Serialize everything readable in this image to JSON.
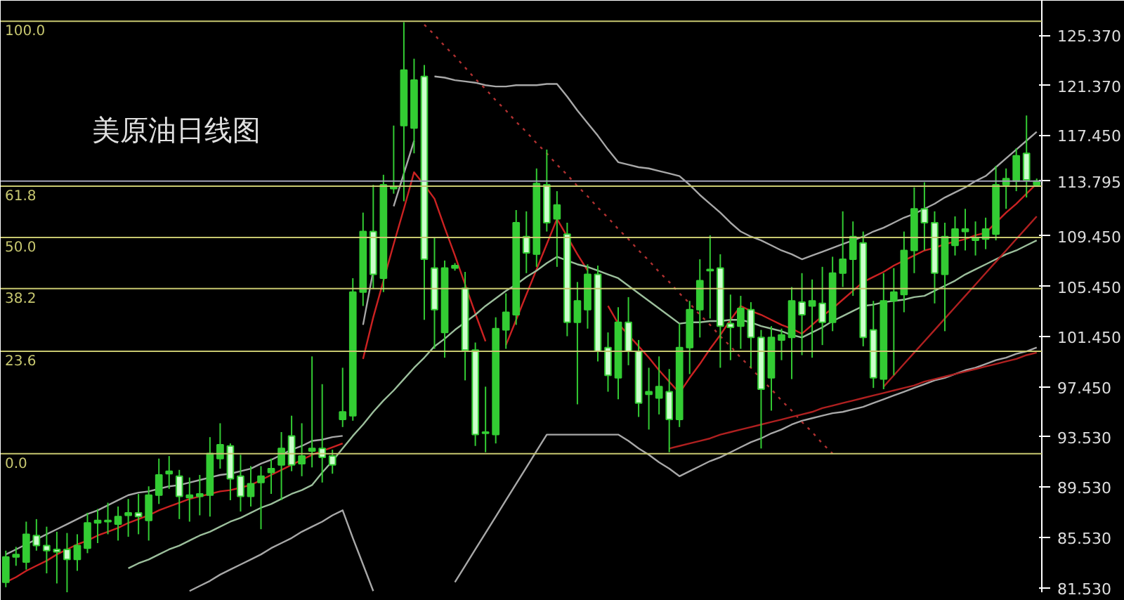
{
  "chart_data": {
    "type": "candlestick",
    "title": "美原油日线图",
    "tick_labels": "y",
    "categories": [
      null,
      null,
      null,
      null,
      null,
      null,
      null,
      null,
      null,
      null,
      null,
      null,
      null,
      null,
      null,
      null,
      null,
      null,
      null,
      null,
      null,
      null,
      null,
      null,
      null,
      null,
      null,
      null,
      null,
      null,
      null,
      null,
      null,
      null,
      null,
      null,
      null,
      null,
      null,
      null,
      null,
      null,
      null,
      null,
      null,
      null,
      null,
      null,
      null,
      null,
      null,
      null,
      null,
      null,
      null,
      null,
      null,
      null,
      null,
      null,
      null,
      null,
      null,
      null,
      null,
      null,
      null,
      null,
      null,
      null,
      null,
      null,
      null,
      null,
      null,
      null,
      null,
      null,
      null,
      null,
      null,
      null,
      null,
      null,
      null,
      null,
      null,
      null,
      null,
      null,
      null,
      null,
      null,
      null,
      null,
      null,
      null,
      null,
      null,
      null,
      null,
      null
    ],
    "ohlc": [
      [
        82.0,
        84.5,
        81.6,
        84.0
      ],
      [
        84.0,
        84.8,
        83.3,
        84.2
      ],
      [
        83.6,
        86.8,
        83.0,
        85.8
      ],
      [
        85.7,
        87.0,
        84.5,
        84.9
      ],
      [
        84.9,
        86.4,
        82.7,
        84.5
      ],
      [
        84.6,
        86.0,
        81.9,
        84.4
      ],
      [
        84.6,
        85.9,
        81.2,
        83.8
      ],
      [
        83.8,
        85.8,
        82.9,
        84.9
      ],
      [
        84.7,
        87.5,
        84.3,
        86.7
      ],
      [
        86.7,
        87.8,
        85.1,
        86.9
      ],
      [
        86.8,
        88.3,
        85.8,
        86.9
      ],
      [
        86.6,
        88.0,
        85.3,
        87.2
      ],
      [
        87.3,
        88.6,
        85.6,
        87.5
      ],
      [
        87.5,
        89.0,
        85.8,
        87.2
      ],
      [
        86.9,
        89.6,
        85.3,
        88.9
      ],
      [
        88.9,
        91.8,
        88.2,
        90.5
      ],
      [
        90.6,
        92.0,
        89.4,
        90.8
      ],
      [
        90.4,
        90.9,
        87.0,
        88.8
      ],
      [
        88.7,
        90.3,
        86.8,
        88.9
      ],
      [
        88.8,
        90.5,
        87.3,
        89.0
      ],
      [
        88.9,
        93.5,
        87.2,
        92.2
      ],
      [
        91.8,
        94.6,
        91.0,
        92.9
      ],
      [
        92.8,
        93.0,
        88.5,
        90.2
      ],
      [
        90.4,
        92.1,
        87.6,
        88.8
      ],
      [
        88.8,
        91.2,
        88.0,
        89.8
      ],
      [
        89.9,
        91.2,
        86.2,
        90.4
      ],
      [
        90.7,
        91.8,
        89.0,
        91.0
      ],
      [
        91.3,
        93.9,
        88.5,
        92.6
      ],
      [
        93.6,
        95.2,
        90.8,
        91.3
      ],
      [
        91.4,
        94.6,
        90.4,
        92.0
      ],
      [
        92.4,
        99.9,
        91.1,
        92.6
      ],
      [
        92.6,
        97.7,
        89.9,
        91.9
      ],
      [
        92.0,
        92.5,
        90.6,
        91.3
      ],
      [
        94.9,
        99.0,
        94.3,
        95.5
      ],
      [
        95.2,
        106.1,
        94.8,
        105.0
      ],
      [
        105.0,
        111.3,
        103.9,
        109.8
      ],
      [
        109.8,
        113.5,
        105.3,
        106.4
      ],
      [
        106.1,
        114.3,
        105.0,
        113.5
      ],
      [
        113.2,
        118.2,
        112.8,
        113.4
      ],
      [
        118.2,
        126.4,
        112.2,
        122.6
      ],
      [
        118.0,
        123.5,
        116.0,
        121.8
      ],
      [
        122.1,
        123.0,
        102.8,
        107.6
      ],
      [
        106.9,
        109.3,
        100.5,
        103.6
      ],
      [
        101.8,
        107.5,
        99.8,
        106.9
      ],
      [
        106.9,
        107.3,
        106.7,
        107.1
      ],
      [
        105.3,
        106.6,
        98.0,
        100.4
      ],
      [
        100.4,
        101.0,
        92.8,
        93.7
      ],
      [
        93.8,
        97.5,
        92.3,
        93.9
      ],
      [
        93.7,
        103.0,
        93.0,
        102.1
      ],
      [
        102.0,
        104.9,
        100.5,
        103.4
      ],
      [
        103.2,
        111.5,
        102.4,
        110.5
      ],
      [
        109.4,
        111.4,
        106.5,
        108.1
      ],
      [
        108.0,
        114.8,
        107.0,
        113.6
      ],
      [
        113.5,
        116.3,
        109.8,
        110.5
      ],
      [
        110.8,
        113.0,
        107.0,
        111.9
      ],
      [
        109.6,
        110.5,
        101.5,
        102.6
      ],
      [
        102.6,
        105.8,
        96.1,
        104.3
      ],
      [
        103.6,
        107.2,
        102.1,
        106.4
      ],
      [
        106.4,
        107.1,
        99.5,
        100.3
      ],
      [
        100.6,
        101.8,
        97.1,
        98.4
      ],
      [
        98.2,
        103.8,
        96.5,
        102.6
      ],
      [
        102.6,
        104.6,
        99.2,
        100.3
      ],
      [
        100.3,
        101.2,
        95.1,
        96.2
      ],
      [
        96.9,
        99.0,
        94.1,
        97.1
      ],
      [
        96.6,
        99.9,
        95.3,
        97.5
      ],
      [
        97.1,
        98.9,
        92.3,
        94.9
      ],
      [
        94.9,
        102.5,
        94.3,
        100.6
      ],
      [
        100.6,
        104.3,
        98.5,
        103.6
      ],
      [
        103.6,
        107.6,
        101.4,
        105.9
      ],
      [
        106.7,
        109.5,
        102.9,
        106.8
      ],
      [
        106.9,
        108.0,
        99.0,
        102.3
      ],
      [
        102.5,
        104.8,
        99.6,
        102.2
      ],
      [
        102.3,
        104.7,
        100.5,
        103.7
      ],
      [
        103.6,
        104.2,
        99.0,
        101.4
      ],
      [
        101.4,
        102.0,
        92.6,
        97.3
      ],
      [
        98.2,
        102.3,
        95.6,
        101.4
      ],
      [
        101.2,
        102.1,
        99.6,
        101.6
      ],
      [
        101.4,
        105.4,
        98.1,
        104.3
      ],
      [
        104.2,
        106.5,
        100.0,
        103.2
      ],
      [
        103.9,
        106.0,
        99.8,
        104.3
      ],
      [
        104.1,
        107.0,
        100.8,
        102.6
      ],
      [
        102.6,
        107.8,
        101.9,
        106.5
      ],
      [
        106.5,
        111.4,
        105.4,
        107.6
      ],
      [
        107.6,
        110.6,
        104.7,
        109.4
      ],
      [
        108.9,
        109.8,
        100.7,
        101.4
      ],
      [
        102.0,
        104.3,
        97.4,
        98.2
      ],
      [
        98.1,
        106.5,
        97.3,
        104.3
      ],
      [
        104.3,
        106.9,
        98.4,
        105.0
      ],
      [
        104.8,
        109.8,
        103.4,
        108.3
      ],
      [
        108.3,
        113.3,
        106.5,
        111.6
      ],
      [
        111.6,
        113.7,
        108.3,
        110.5
      ],
      [
        110.5,
        111.4,
        104.1,
        106.5
      ],
      [
        106.4,
        110.5,
        101.9,
        109.4
      ],
      [
        108.7,
        111.0,
        107.9,
        110.0
      ],
      [
        109.8,
        111.6,
        108.3,
        110.0
      ],
      [
        109.1,
        110.6,
        107.9,
        109.3
      ],
      [
        109.2,
        110.9,
        108.4,
        110.0
      ],
      [
        109.6,
        115.0,
        109.1,
        113.5
      ],
      [
        113.5,
        114.8,
        111.6,
        114.0
      ],
      [
        113.8,
        116.4,
        113.0,
        115.8
      ],
      [
        116.0,
        119.0,
        112.5,
        113.9
      ],
      [
        113.5,
        114.0,
        113.4,
        113.8
      ]
    ],
    "series": [
      {
        "type": "line",
        "color": "#cc2222",
        "line_style": "solid",
        "values": [
          82.0,
          82.4,
          82.9,
          83.3,
          83.7,
          84.2,
          84.6,
          85.0,
          85.3,
          85.7,
          86.0,
          86.3,
          86.7,
          87.0,
          87.3,
          87.7,
          88.0,
          88.3,
          88.6,
          88.8,
          89.0,
          89.2,
          89.3,
          89.5,
          89.7,
          90.1,
          90.5,
          90.9,
          91.3,
          91.7,
          92.1,
          92.4,
          92.7,
          93.0,
          null,
          99.7,
          103.0,
          105.9,
          108.8,
          111.6,
          114.5,
          113.5,
          112.4,
          110.1,
          107.9,
          105.6,
          103.3,
          101.1,
          null,
          100.8,
          102.8,
          104.8,
          106.8,
          108.8,
          110.8,
          109.4,
          108.0,
          106.7,
          null,
          103.9,
          102.5,
          101.6,
          100.7,
          99.8,
          98.8,
          97.9,
          97.0,
          98.2,
          99.3,
          100.5,
          101.6,
          102.8,
          103.9,
          103.5,
          103.2,
          102.8,
          102.4,
          102.1,
          101.7,
          102.4,
          103.1,
          103.7,
          104.4,
          105.1,
          105.8,
          106.2,
          106.6,
          107.1,
          107.5,
          107.9,
          108.3,
          108.5,
          108.8,
          109.0,
          109.2,
          109.5,
          109.7,
          110.5,
          111.3,
          112.0,
          112.8,
          113.6
        ]
      },
      {
        "type": "line",
        "color": "#a8a8a8",
        "line_style": "solid",
        "values": [
          84.2,
          84.6,
          85.0,
          85.4,
          85.8,
          86.2,
          86.6,
          87.0,
          87.4,
          87.7,
          88.1,
          88.5,
          88.9,
          89.1,
          89.2,
          89.4,
          89.6,
          89.7,
          89.9,
          90.1,
          90.3,
          90.5,
          90.6,
          90.8,
          91.0,
          91.4,
          91.7,
          92.1,
          92.5,
          92.8,
          93.2,
          93.3,
          93.5,
          93.6,
          null,
          102.4,
          106.7,
          null,
          111.8,
          114.4,
          117.0,
          null,
          122.1,
          122.0,
          121.8,
          121.7,
          121.6,
          121.4,
          121.3,
          121.3,
          121.4,
          121.4,
          121.4,
          121.5,
          121.5,
          120.5,
          119.4,
          118.4,
          117.4,
          116.3,
          115.3,
          115.1,
          114.9,
          114.8,
          114.6,
          114.4,
          114.2,
          113.5,
          112.7,
          112.0,
          111.3,
          110.5,
          109.8,
          109.4,
          109.1,
          108.7,
          108.3,
          108.0,
          107.6,
          107.9,
          108.2,
          108.5,
          108.8,
          109.1,
          109.4,
          109.8,
          110.1,
          110.5,
          110.9,
          111.2,
          111.6,
          112.0,
          112.5,
          112.9,
          113.3,
          113.8,
          114.2,
          114.9,
          115.6,
          116.3,
          117.0,
          117.7
        ]
      },
      {
        "type": "line",
        "color": "#9cbf9c",
        "line_style": "solid",
        "values": [
          null,
          null,
          null,
          null,
          null,
          null,
          null,
          null,
          null,
          null,
          null,
          null,
          83.1,
          83.5,
          83.8,
          84.2,
          84.6,
          84.9,
          85.3,
          85.7,
          86.0,
          86.4,
          86.8,
          87.1,
          87.5,
          87.9,
          88.2,
          88.6,
          89.0,
          89.3,
          89.7,
          90.7,
          91.6,
          92.6,
          93.6,
          94.5,
          95.5,
          96.4,
          97.2,
          98.1,
          99.0,
          99.8,
          100.7,
          101.3,
          102.0,
          102.6,
          103.2,
          103.9,
          104.5,
          105.1,
          105.6,
          106.2,
          106.7,
          107.3,
          107.8,
          107.5,
          107.2,
          107.0,
          106.7,
          106.4,
          106.1,
          105.5,
          104.9,
          104.3,
          103.7,
          103.1,
          102.5,
          102.6,
          102.6,
          102.7,
          102.7,
          102.8,
          102.8,
          102.6,
          102.3,
          102.1,
          101.9,
          101.6,
          101.4,
          101.8,
          102.2,
          102.7,
          103.1,
          103.5,
          103.9,
          104.0,
          104.2,
          104.3,
          104.4,
          104.6,
          104.7,
          105.1,
          105.5,
          105.9,
          106.4,
          106.8,
          107.2,
          107.6,
          108.0,
          108.3,
          108.7,
          109.1
        ]
      },
      {
        "type": "line",
        "color": "#a8a8a8",
        "line_style": "solid",
        "values": [
          null,
          null,
          null,
          null,
          null,
          null,
          null,
          null,
          null,
          null,
          null,
          null,
          null,
          null,
          null,
          null,
          null,
          null,
          81.3,
          81.7,
          82.1,
          82.6,
          83.0,
          83.4,
          83.8,
          84.2,
          84.7,
          85.1,
          85.5,
          86.0,
          86.4,
          86.8,
          87.3,
          87.7,
          85.5,
          83.4,
          81.3,
          null,
          null,
          null,
          null,
          null,
          null,
          null,
          82.0,
          83.3,
          84.6,
          85.9,
          87.2,
          88.5,
          89.8,
          91.1,
          92.4,
          93.7,
          93.7,
          93.7,
          93.7,
          93.7,
          93.7,
          93.7,
          93.7,
          93.2,
          92.6,
          92.1,
          91.5,
          91.0,
          90.4,
          90.8,
          91.2,
          91.6,
          91.9,
          92.3,
          92.7,
          93.1,
          93.4,
          93.8,
          94.1,
          94.5,
          94.8,
          95.0,
          95.2,
          95.4,
          95.5,
          95.7,
          95.9,
          96.2,
          96.5,
          96.8,
          97.1,
          97.4,
          97.7,
          98.0,
          98.2,
          98.5,
          98.8,
          99.0,
          99.3,
          99.6,
          99.8,
          100.1,
          100.3,
          100.6
        ]
      },
      {
        "type": "line",
        "color": "#b03030",
        "line_style": "dotted",
        "values": [
          null,
          null,
          null,
          null,
          null,
          null,
          null,
          null,
          null,
          null,
          null,
          null,
          null,
          null,
          null,
          null,
          null,
          null,
          null,
          null,
          null,
          null,
          null,
          null,
          null,
          null,
          null,
          null,
          null,
          null,
          null,
          null,
          null,
          null,
          null,
          null,
          null,
          null,
          null,
          null,
          null,
          126.2,
          125.4,
          124.5,
          123.7,
          122.8,
          121.9,
          121.1,
          120.2,
          119.4,
          118.5,
          117.7,
          116.8,
          116.0,
          115.1,
          114.3,
          113.4,
          112.6,
          111.7,
          110.9,
          110.0,
          109.2,
          108.3,
          107.5,
          106.6,
          105.8,
          104.9,
          104.1,
          103.2,
          102.4,
          101.5,
          100.7,
          99.8,
          99.0,
          98.1,
          97.3,
          96.4,
          95.6,
          94.7,
          93.9,
          93.0,
          92.2,
          null,
          null,
          null,
          null,
          null,
          null,
          null,
          null,
          null,
          null,
          null,
          null,
          null,
          null,
          null,
          null,
          null,
          null,
          null,
          null
        ]
      },
      {
        "type": "line",
        "color": "#b02020",
        "line_style": "solid",
        "values": [
          null,
          null,
          null,
          null,
          null,
          null,
          null,
          null,
          null,
          null,
          null,
          null,
          null,
          null,
          null,
          null,
          null,
          null,
          null,
          null,
          null,
          null,
          null,
          null,
          null,
          null,
          null,
          null,
          null,
          null,
          null,
          null,
          null,
          null,
          null,
          null,
          null,
          null,
          null,
          null,
          null,
          null,
          null,
          null,
          null,
          null,
          null,
          null,
          null,
          null,
          null,
          null,
          null,
          null,
          null,
          null,
          null,
          null,
          null,
          null,
          null,
          null,
          null,
          null,
          null,
          null,
          null,
          null,
          null,
          null,
          null,
          null,
          null,
          null,
          null,
          null,
          null,
          null,
          null,
          null,
          null,
          null,
          null,
          null,
          null,
          null,
          97.5,
          98.4,
          99.3,
          100.2,
          101.1,
          102.0,
          102.9,
          103.8,
          104.7,
          105.6,
          106.5,
          107.4,
          108.3,
          109.2,
          110.1,
          111.0
        ]
      },
      {
        "type": "line",
        "color": "#b02020",
        "line_style": "solid",
        "values": [
          null,
          null,
          null,
          null,
          null,
          null,
          null,
          null,
          null,
          null,
          null,
          null,
          null,
          null,
          null,
          null,
          null,
          null,
          null,
          null,
          null,
          null,
          null,
          null,
          null,
          null,
          null,
          null,
          null,
          null,
          null,
          null,
          null,
          null,
          null,
          null,
          null,
          null,
          null,
          null,
          null,
          null,
          null,
          null,
          null,
          null,
          null,
          null,
          null,
          null,
          null,
          null,
          null,
          null,
          null,
          null,
          null,
          null,
          null,
          null,
          null,
          null,
          null,
          null,
          null,
          92.6,
          92.8,
          93.0,
          93.2,
          93.4,
          93.7,
          93.9,
          94.1,
          94.3,
          94.5,
          94.7,
          94.9,
          95.1,
          95.3,
          95.5,
          95.8,
          96.0,
          96.2,
          96.4,
          96.6,
          96.8,
          97.0,
          97.2,
          97.4,
          97.6,
          97.9,
          98.1,
          98.3,
          98.5,
          98.7,
          98.9,
          99.1,
          99.3,
          99.5,
          99.7,
          100.0,
          100.2
        ]
      }
    ],
    "ylim": [
      81.2,
      128.1
    ],
    "yticks": [
      {
        "value": 81.53,
        "label": "81.530"
      },
      {
        "value": 85.53,
        "label": "85.530"
      },
      {
        "value": 89.53,
        "label": "89.530"
      },
      {
        "value": 93.53,
        "label": "93.530"
      },
      {
        "value": 97.45,
        "label": "97.450"
      },
      {
        "value": 101.45,
        "label": "101.450"
      },
      {
        "value": 105.45,
        "label": "105.450"
      },
      {
        "value": 109.45,
        "label": "109.450"
      },
      {
        "value": 113.795,
        "label": "113.795"
      },
      {
        "value": 117.45,
        "label": "117.450"
      },
      {
        "value": 121.37,
        "label": "121.370"
      },
      {
        "value": 125.37,
        "label": "125.370"
      }
    ],
    "ref_lines": [
      {
        "axis": "y",
        "value": 126.47,
        "color": "#c8c870"
      },
      {
        "axis": "y",
        "value": 113.39,
        "color": "#c8c870"
      },
      {
        "axis": "y",
        "value": 109.33,
        "color": "#c8c870"
      },
      {
        "axis": "y",
        "value": 105.28,
        "color": "#c8c870"
      },
      {
        "axis": "y",
        "value": 100.3,
        "color": "#c8c870"
      },
      {
        "axis": "y",
        "value": 92.19,
        "color": "#c8c870"
      },
      {
        "axis": "y",
        "value": 113.795,
        "color": "#a0a0b4"
      }
    ],
    "annotations": [
      {
        "text": "100.0",
        "y": 126.47
      },
      {
        "text": "61.8",
        "y": 113.39
      },
      {
        "text": "50.0",
        "y": 109.33
      },
      {
        "text": "38.2",
        "y": 105.28
      },
      {
        "text": "23.6",
        "y": 100.3
      },
      {
        "text": "0.0",
        "y": 92.19
      }
    ]
  }
}
